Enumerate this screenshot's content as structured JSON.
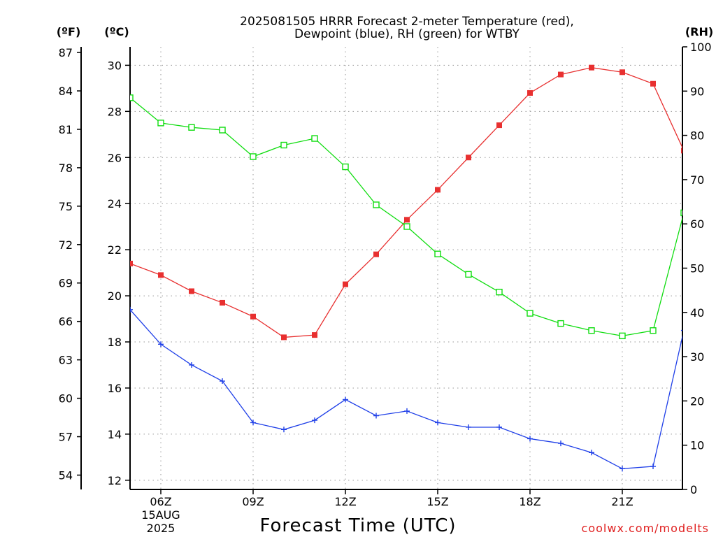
{
  "header": {
    "title_line1": "2025081505 HRRR Forecast 2-meter Temperature (red),",
    "title_line2": "Dewpoint (blue), RH (green) for WTBY"
  },
  "axes": {
    "left_f_unit": "(ºF)",
    "left_c_unit": "(ºC)",
    "right_unit": "(RH)",
    "xlabel": "Forecast Time (UTC)",
    "date_line1": "15AUG",
    "date_line2": "2025"
  },
  "credit": "coolwx.com/modelts",
  "colors": {
    "temperature": "#e83030",
    "dewpoint": "#2040e8",
    "rh": "#10dd10"
  },
  "chart_data": {
    "type": "line",
    "title": "2025081505 HRRR Forecast 2-meter Temperature (red), Dewpoint (blue), RH (green) for WTBY",
    "xlabel": "Forecast Time (UTC)",
    "x": [
      "05Z",
      "06Z",
      "07Z",
      "08Z",
      "09Z",
      "10Z",
      "11Z",
      "12Z",
      "13Z",
      "14Z",
      "15Z",
      "16Z",
      "17Z",
      "18Z",
      "19Z",
      "20Z",
      "21Z",
      "22Z",
      "23Z"
    ],
    "x_tick_labels": [
      "06Z",
      "09Z",
      "12Z",
      "15Z",
      "18Z",
      "21Z"
    ],
    "c_ylim": [
      11.6,
      30.8
    ],
    "c_ticks": [
      12,
      14,
      16,
      18,
      20,
      22,
      24,
      26,
      28,
      30
    ],
    "f_ticks": [
      54,
      57,
      60,
      63,
      66,
      69,
      72,
      75,
      78,
      81,
      84,
      87
    ],
    "rh_ylim": [
      0,
      100
    ],
    "rh_ticks": [
      0,
      10,
      20,
      30,
      40,
      50,
      60,
      70,
      80,
      90,
      100
    ],
    "grid": true,
    "series": [
      {
        "name": "Temperature",
        "axis": "C",
        "marker": "filled-square",
        "values": [
          21.4,
          20.9,
          20.2,
          19.7,
          19.1,
          18.2,
          18.3,
          20.5,
          21.8,
          23.3,
          24.6,
          26.0,
          27.4,
          28.8,
          29.6,
          29.9,
          29.7,
          29.2,
          26.3
        ]
      },
      {
        "name": "Dewpoint",
        "axis": "C",
        "marker": "plus",
        "values": [
          19.4,
          17.9,
          17.0,
          16.3,
          14.5,
          14.2,
          14.6,
          15.5,
          14.8,
          15.0,
          14.5,
          14.3,
          14.3,
          13.8,
          13.6,
          13.2,
          12.5,
          12.6,
          18.5
        ]
      },
      {
        "name": "RH",
        "axis": "RH",
        "marker": "open-square",
        "values": [
          88.5,
          82.8,
          81.8,
          81.2,
          75.2,
          77.8,
          79.3,
          72.9,
          64.3,
          59.4,
          53.2,
          48.6,
          44.6,
          39.8,
          37.5,
          35.9,
          34.7,
          35.9,
          62.5
        ]
      }
    ]
  }
}
